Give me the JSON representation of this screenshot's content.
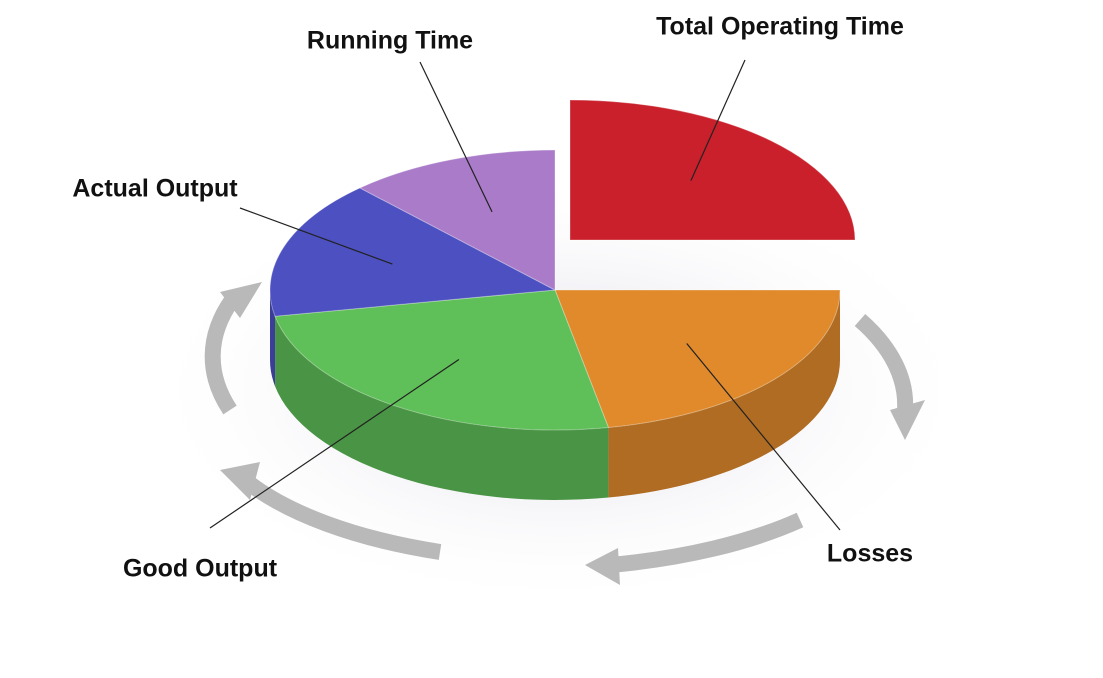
{
  "chart_data": {
    "type": "pie",
    "categories": [
      "Total Operating Time",
      "Losses",
      "Good Output",
      "Actual Output",
      "Running Time"
    ],
    "values": [
      25,
      22,
      25,
      16,
      12
    ],
    "colors": [
      "#c9202b",
      "#e08a2c",
      "#5fbf58",
      "#4c50c0",
      "#a97bc9"
    ]
  }
}
